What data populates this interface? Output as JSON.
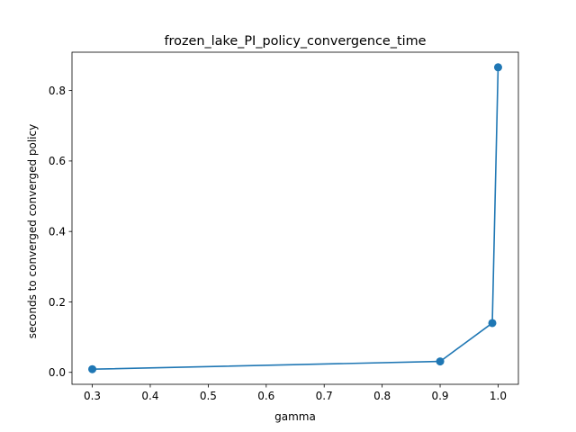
{
  "chart_data": {
    "type": "line",
    "title": "frozen_lake_PI_policy_convergence_time",
    "xlabel": "gamma",
    "ylabel": "seconds to converged converged policy",
    "x": [
      0.3,
      0.9,
      0.99,
      1.0
    ],
    "series": [
      {
        "values": [
          0.009,
          0.031,
          0.14,
          0.866
        ]
      }
    ],
    "xlim": [
      0.265,
      1.035
    ],
    "ylim": [
      -0.0339,
      0.9089
    ],
    "xticks": [
      0.3,
      0.4,
      0.5,
      0.6,
      0.7,
      0.8,
      0.9,
      1.0
    ],
    "xtick_labels": [
      "0.3",
      "0.4",
      "0.5",
      "0.6",
      "0.7",
      "0.8",
      "0.9",
      "1.0"
    ],
    "yticks": [
      0.0,
      0.2,
      0.4,
      0.6,
      0.8
    ],
    "ytick_labels": [
      "0.0",
      "0.2",
      "0.4",
      "0.6",
      "0.8"
    ],
    "grid": false,
    "line_color": "#1f77b4",
    "marker": "circle"
  }
}
